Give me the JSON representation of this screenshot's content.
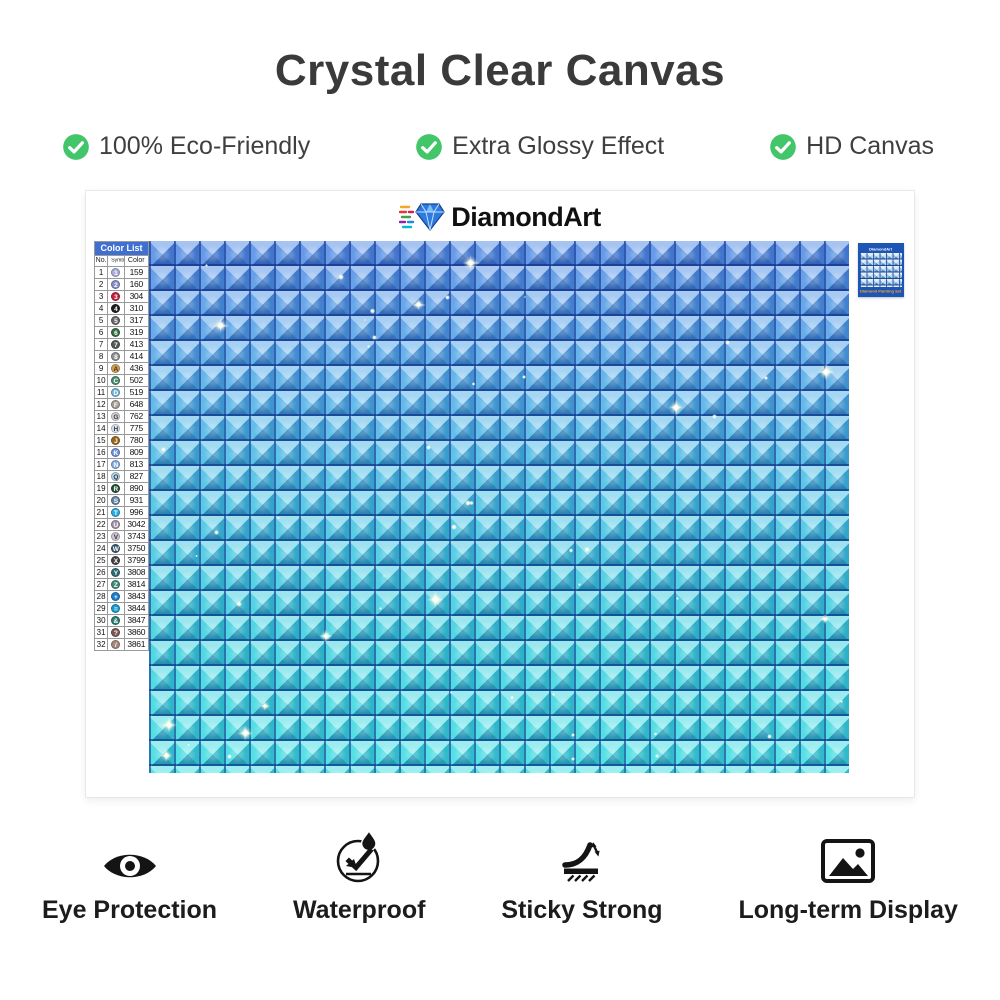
{
  "page": {
    "title": "Crystal Clear Canvas"
  },
  "top_features": [
    {
      "label": "100% Eco-Friendly",
      "icon": "check-circle-icon"
    },
    {
      "label": "Extra Glossy Effect",
      "icon": "check-circle-icon"
    },
    {
      "label": "HD Canvas",
      "icon": "check-circle-icon"
    }
  ],
  "canvas_panel": {
    "brand": "DiamondArt",
    "color_list": {
      "title": "Color List",
      "headers": {
        "no": "No.",
        "symbol": "Symbol",
        "color": "Color"
      },
      "rows": [
        {
          "no": "1",
          "symbol": "1",
          "code": "159",
          "fill": "#a8aed6",
          "ink": "#ffffff"
        },
        {
          "no": "2",
          "symbol": "2",
          "code": "160",
          "fill": "#8690c4",
          "ink": "#ffffff"
        },
        {
          "no": "3",
          "symbol": "3",
          "code": "304",
          "fill": "#bf2342",
          "ink": "#ffffff"
        },
        {
          "no": "4",
          "symbol": "4",
          "code": "310",
          "fill": "#1d1d1f",
          "ink": "#ffffff"
        },
        {
          "no": "5",
          "symbol": "5",
          "code": "317",
          "fill": "#67666c",
          "ink": "#ffffff"
        },
        {
          "no": "6",
          "symbol": "6",
          "code": "319",
          "fill": "#336b44",
          "ink": "#ffffff"
        },
        {
          "no": "7",
          "symbol": "7",
          "code": "413",
          "fill": "#55575b",
          "ink": "#ffffff"
        },
        {
          "no": "8",
          "symbol": "8",
          "code": "414",
          "fill": "#8e9094",
          "ink": "#ffffff"
        },
        {
          "no": "9",
          "symbol": "A",
          "code": "436",
          "fill": "#cfa05c",
          "ink": "#4a3000"
        },
        {
          "no": "10",
          "symbol": "C",
          "code": "502",
          "fill": "#4d8a70",
          "ink": "#ffffff"
        },
        {
          "no": "11",
          "symbol": "D",
          "code": "519",
          "fill": "#77b4d8",
          "ink": "#ffffff"
        },
        {
          "no": "12",
          "symbol": "F",
          "code": "648",
          "fill": "#a39e92",
          "ink": "#ffffff"
        },
        {
          "no": "13",
          "symbol": "G",
          "code": "762",
          "fill": "#d9d9db",
          "ink": "#333333"
        },
        {
          "no": "14",
          "symbol": "H",
          "code": "775",
          "fill": "#dbe7f3",
          "ink": "#333333"
        },
        {
          "no": "15",
          "symbol": "J",
          "code": "780",
          "fill": "#99661f",
          "ink": "#ffffff"
        },
        {
          "no": "16",
          "symbol": "K",
          "code": "809",
          "fill": "#7395d6",
          "ink": "#ffffff"
        },
        {
          "no": "17",
          "symbol": "N",
          "code": "813",
          "fill": "#84aede",
          "ink": "#ffffff"
        },
        {
          "no": "18",
          "symbol": "Q",
          "code": "827",
          "fill": "#b8d7ec",
          "ink": "#333333"
        },
        {
          "no": "19",
          "symbol": "R",
          "code": "890",
          "fill": "#1f5130",
          "ink": "#ffffff"
        },
        {
          "no": "20",
          "symbol": "S",
          "code": "931",
          "fill": "#64829e",
          "ink": "#ffffff"
        },
        {
          "no": "21",
          "symbol": "T",
          "code": "996",
          "fill": "#2ea9e0",
          "ink": "#ffffff"
        },
        {
          "no": "22",
          "symbol": "U",
          "code": "3042",
          "fill": "#a393a8",
          "ink": "#ffffff"
        },
        {
          "no": "23",
          "symbol": "V",
          "code": "3743",
          "fill": "#cfc6d6",
          "ink": "#333333"
        },
        {
          "no": "24",
          "symbol": "W",
          "code": "3750",
          "fill": "#38596d",
          "ink": "#ffffff"
        },
        {
          "no": "25",
          "symbol": "X",
          "code": "3799",
          "fill": "#454443",
          "ink": "#ffffff"
        },
        {
          "no": "26",
          "symbol": "Y",
          "code": "3808",
          "fill": "#2e6a73",
          "ink": "#ffffff"
        },
        {
          "no": "27",
          "symbol": "Z",
          "code": "3814",
          "fill": "#41897a",
          "ink": "#ffffff"
        },
        {
          "no": "28",
          "symbol": "+",
          "code": "3843",
          "fill": "#1e7fc8",
          "ink": "#ffffff"
        },
        {
          "no": "29",
          "symbol": "=",
          "code": "3844",
          "fill": "#189ccc",
          "ink": "#ffffff"
        },
        {
          "no": "30",
          "symbol": "&",
          "code": "3847",
          "fill": "#2c7e6f",
          "ink": "#ffffff"
        },
        {
          "no": "31",
          "symbol": "?",
          "code": "3860",
          "fill": "#7b5a52",
          "ink": "#ffffff"
        },
        {
          "no": "32",
          "symbol": "/",
          "code": "3861",
          "fill": "#a3867c",
          "ink": "#ffffff"
        }
      ]
    },
    "thumbnail": {
      "brand": "DiamondArt",
      "caption": "Diamond Painting Set"
    }
  },
  "bottom_features": [
    {
      "label": "Eye Protection",
      "icon": "eye-icon"
    },
    {
      "label": "Waterproof",
      "icon": "waterproof-icon"
    },
    {
      "label": "Sticky Strong",
      "icon": "sticky-strong-icon"
    },
    {
      "label": "Long-term Display",
      "icon": "picture-display-icon"
    }
  ],
  "colors": {
    "accent_green": "#43c56a",
    "table_header_blue": "#3f6fd1",
    "thumbnail_blue": "#1d55b4",
    "thumbnail_caption_orange": "#ffa726",
    "canvas_top_blue": "#4e86e2",
    "canvas_bottom_teal": "#3adde2"
  }
}
